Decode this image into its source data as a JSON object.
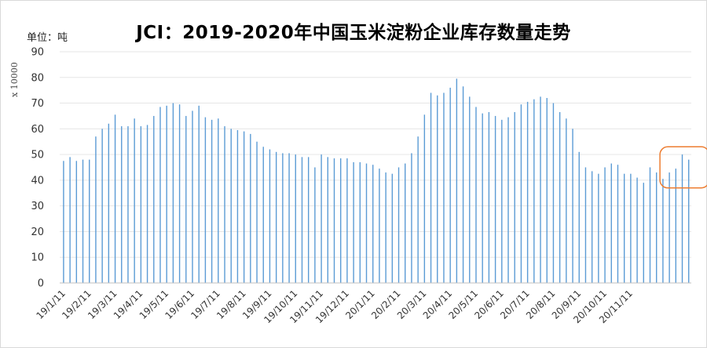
{
  "chart_data": {
    "type": "bar",
    "title": "JCI：2019-2020年中国玉米淀粉企业库存数量走势",
    "unit": "单位：吨",
    "scale": "x 10000",
    "ylim": [
      0,
      90
    ],
    "yticks": [
      0,
      10,
      20,
      30,
      40,
      50,
      60,
      70,
      80,
      90
    ],
    "bar_color": "#5b9bd5",
    "x_tick_labels": [
      "19/1/11",
      "19/2/11",
      "19/3/11",
      "19/4/11",
      "19/5/11",
      "19/6/11",
      "19/7/11",
      "19/8/11",
      "19/9/11",
      "19/10/11",
      "19/11/11",
      "19/12/11",
      "20/1/11",
      "20/2/11",
      "20/3/11",
      "20/4/11",
      "20/5/11",
      "20/6/11",
      "20/7/11",
      "20/8/11",
      "20/9/11",
      "20/10/11",
      "20/11/11"
    ],
    "values": [
      47.5,
      49,
      47.5,
      48,
      48,
      57,
      60,
      62,
      65.5,
      61,
      61,
      64,
      61,
      61.5,
      65,
      68.5,
      69,
      70,
      69.5,
      65,
      67,
      69,
      64.5,
      63.5,
      64,
      61,
      60,
      59.5,
      59,
      58,
      55,
      53,
      52,
      51,
      50.5,
      50.5,
      50,
      49,
      49,
      45,
      50,
      49,
      48.5,
      48.5,
      48.5,
      47,
      47,
      46.5,
      46,
      44.5,
      43,
      42.5,
      45,
      46.5,
      50.5,
      57,
      65.5,
      74,
      73,
      74,
      76,
      79.5,
      76.5,
      72.5,
      68.5,
      66,
      66.5,
      65,
      63.5,
      64.5,
      66.5,
      69.5,
      70.5,
      71.5,
      72.5,
      72,
      70,
      66.5,
      64,
      60,
      51,
      45,
      43.5,
      42.5,
      45,
      46.5,
      46,
      42.5,
      42.5,
      41,
      39,
      45,
      43,
      40.5,
      43,
      44.5,
      50,
      48
    ],
    "highlight": {
      "shape": "rounded-rectangle",
      "color": "#ed7d31",
      "x_range": [
        "20/11/11",
        "20/11/11"
      ],
      "y_range": [
        37,
        53
      ]
    }
  }
}
